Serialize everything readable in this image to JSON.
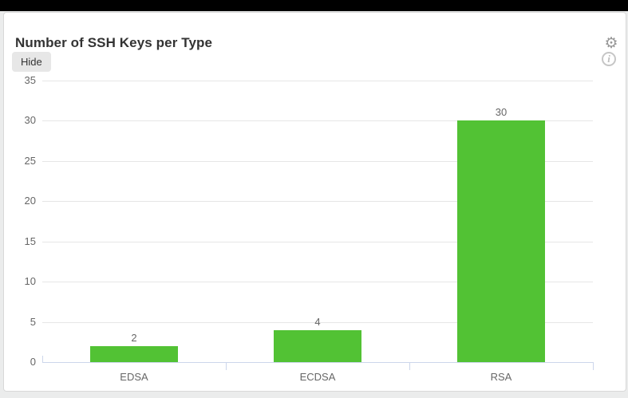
{
  "header": {
    "title": "Number of SSH Keys per Type",
    "hide_button_label": "Hide",
    "settings_icon": "gear-icon",
    "info_icon": "info-circle-icon"
  },
  "chart_data": {
    "type": "bar",
    "title": "Number of SSH Keys per Type",
    "categories": [
      "EDSA",
      "ECDSA",
      "RSA"
    ],
    "values": [
      2,
      4,
      30
    ],
    "value_labels": [
      "2",
      "4",
      "30"
    ],
    "xlabel": "",
    "ylabel": "",
    "ylim": [
      0,
      35
    ],
    "yticks": [
      0,
      5,
      10,
      15,
      20,
      25,
      30,
      35
    ],
    "grid": true,
    "legend": false,
    "bar_color": "#52c234",
    "gridline_color": "#e6e6e6",
    "axis_line_color": "#ccd6eb",
    "label_color": "#666666"
  }
}
